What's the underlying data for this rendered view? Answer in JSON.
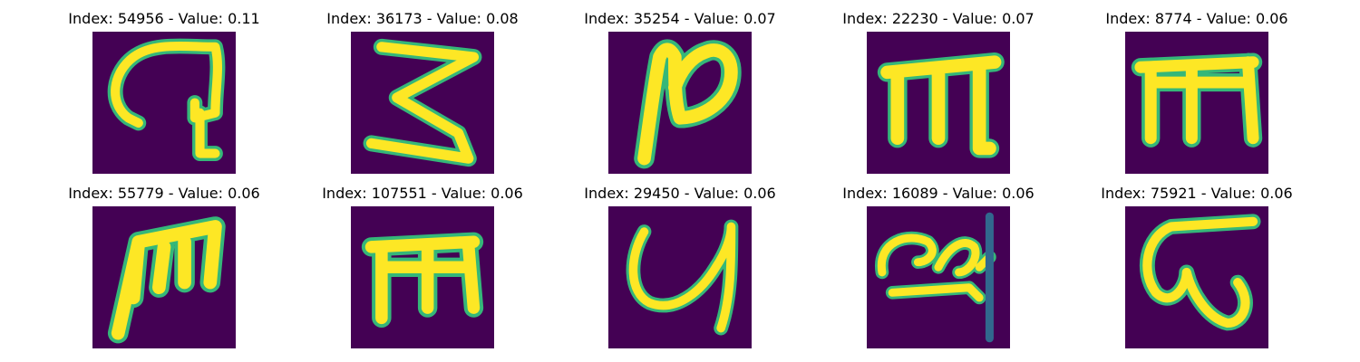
{
  "colors": {
    "background": "#440154",
    "low": "#31688e",
    "mid": "#35b779",
    "high": "#fde725"
  },
  "panels": [
    {
      "title": "Index: 54956 - Value: 0.11"
    },
    {
      "title": "Index: 36173 - Value: 0.08"
    },
    {
      "title": "Index: 35254 - Value: 0.07"
    },
    {
      "title": "Index: 22230 - Value: 0.07"
    },
    {
      "title": "Index: 8774 - Value: 0.06"
    },
    {
      "title": "Index: 55779 - Value: 0.06"
    },
    {
      "title": "Index: 107551 - Value: 0.06"
    },
    {
      "title": "Index: 29450 - Value: 0.06"
    },
    {
      "title": "Index: 16089 - Value: 0.06"
    },
    {
      "title": "Index: 75921 - Value: 0.06"
    }
  ]
}
